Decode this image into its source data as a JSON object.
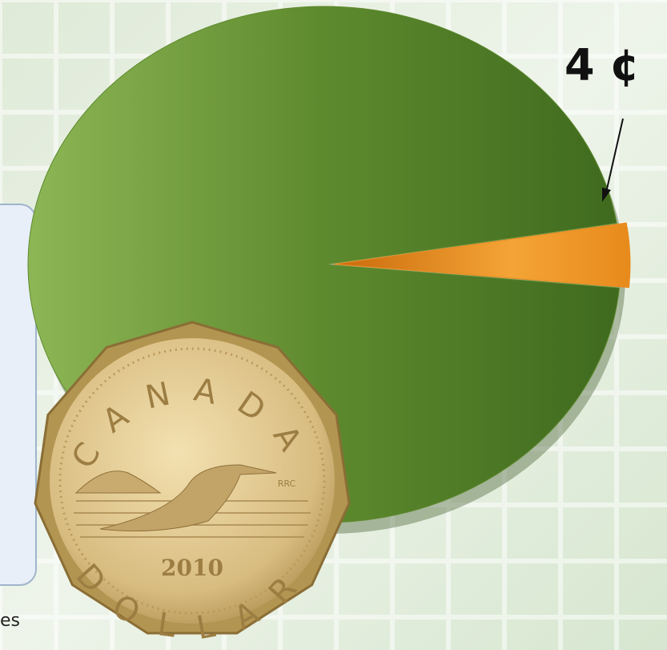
{
  "chart_data": {
    "type": "pie",
    "categories": [
      null,
      null
    ],
    "values": [
      96,
      4
    ],
    "value_labels": [
      null,
      "4 ¢"
    ],
    "colors": [
      "#5e8a2e",
      "#e88a1c"
    ]
  },
  "coin": {
    "country": "CANADA",
    "year": "2010",
    "denomination": "DOLLAR",
    "mint_mark": "RRC"
  },
  "fragment_text": "es"
}
